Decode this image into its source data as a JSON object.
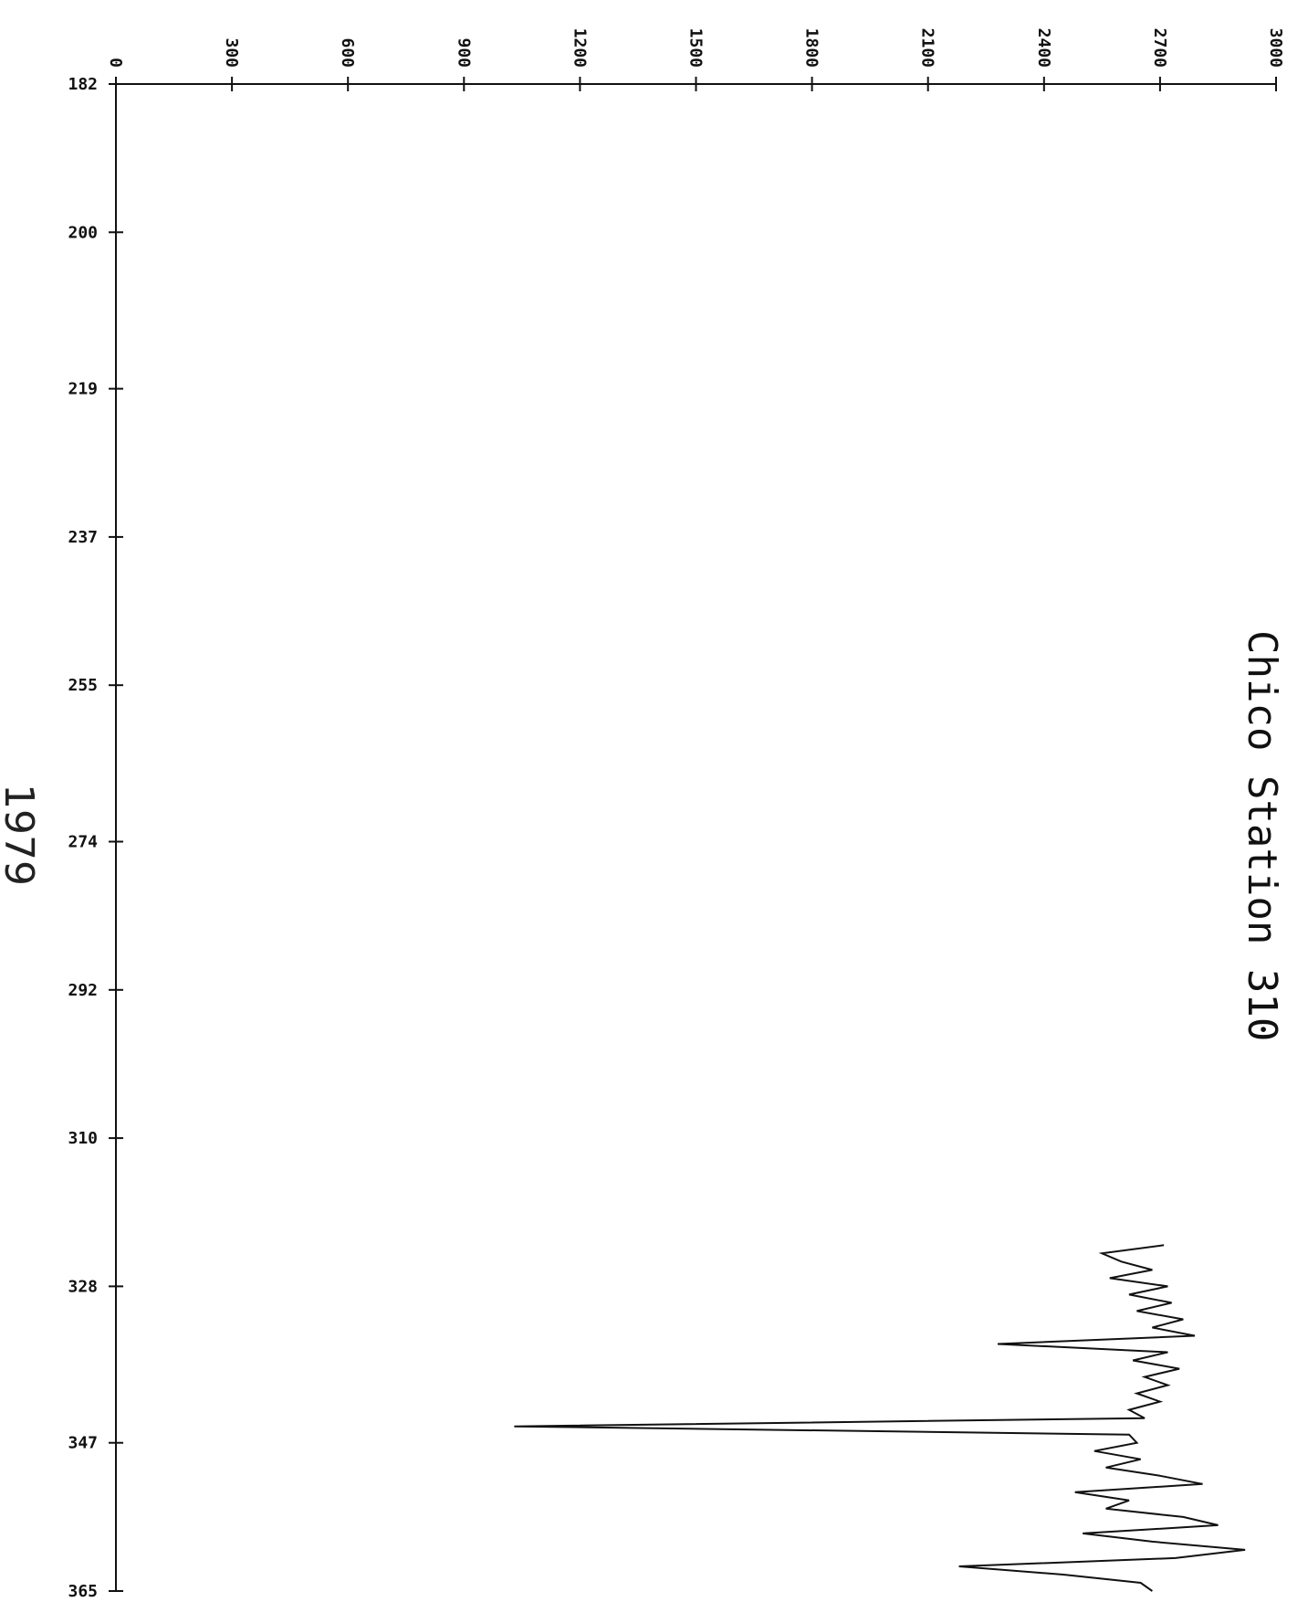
{
  "chart_data": {
    "type": "line",
    "title": "Chico Station 310",
    "subtitle": "1979",
    "orientation": "rotated",
    "x_axis": {
      "ticks": [
        182,
        200,
        219,
        237,
        255,
        274,
        292,
        310,
        328,
        347,
        365
      ],
      "range": [
        182,
        365
      ]
    },
    "y_axis": {
      "ticks": [
        "0",
        "300",
        "600",
        "900",
        "1200",
        "1500",
        "1800",
        "2100",
        "2400",
        "2700",
        "3000"
      ],
      "range": [
        0,
        3000
      ]
    },
    "grid": false,
    "series": [
      {
        "x": [
          323,
          324,
          325,
          326,
          327,
          328,
          329,
          330,
          331,
          332,
          333,
          334,
          335,
          336,
          337,
          338,
          339,
          340,
          341,
          342,
          343,
          344,
          345,
          346,
          347,
          348,
          349,
          350,
          351,
          352,
          353,
          354,
          355,
          356,
          357,
          358,
          359,
          360,
          361,
          362,
          363,
          364,
          365
        ],
        "y": [
          2710,
          2550,
          2600,
          2680,
          2570,
          2720,
          2620,
          2730,
          2640,
          2760,
          2680,
          2790,
          2280,
          2720,
          2630,
          2750,
          2660,
          2720,
          2640,
          2700,
          2620,
          2660,
          1030,
          2620,
          2640,
          2530,
          2650,
          2560,
          2700,
          2810,
          2480,
          2620,
          2560,
          2760,
          2850,
          2500,
          2680,
          2920,
          2740,
          2180,
          2450,
          2650,
          2680
        ]
      }
    ]
  }
}
